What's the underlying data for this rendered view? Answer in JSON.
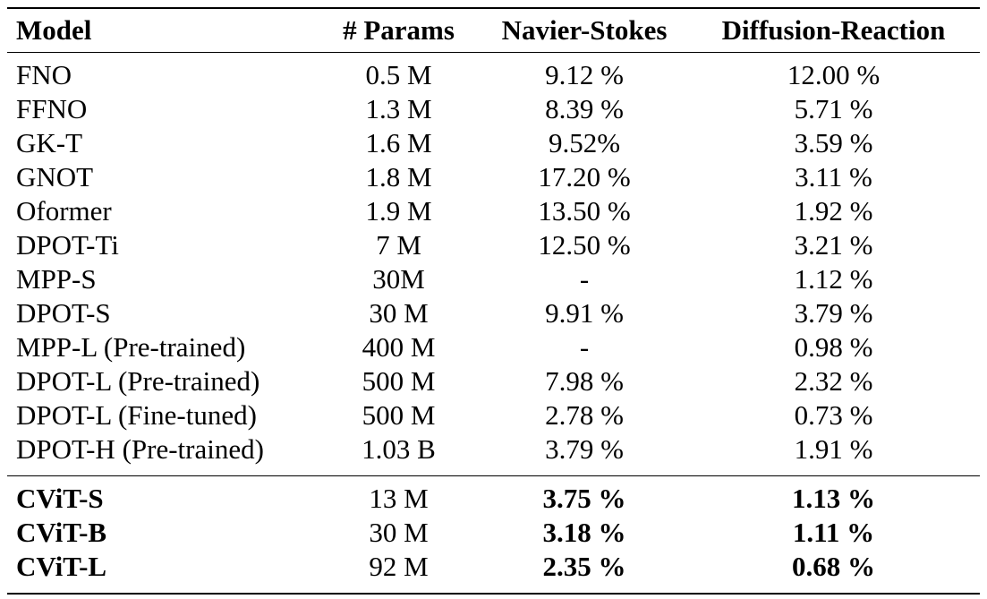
{
  "table": {
    "headers": [
      "Model",
      "# Params",
      "Navier-Stokes",
      "Diffusion-Reaction"
    ],
    "baseline_rows": [
      {
        "model": "FNO",
        "params": "0.5 M",
        "ns": "9.12 %",
        "dr": "12.00 %"
      },
      {
        "model": "FFNO",
        "params": "1.3 M",
        "ns": "8.39 %",
        "dr": "5.71 %"
      },
      {
        "model": "GK-T",
        "params": "1.6 M",
        "ns": "9.52%",
        "dr": "3.59 %"
      },
      {
        "model": "GNOT",
        "params": "1.8 M",
        "ns": "17.20 %",
        "dr": "3.11 %"
      },
      {
        "model": "Oformer",
        "params": "1.9 M",
        "ns": "13.50 %",
        "dr": "1.92 %"
      },
      {
        "model": "DPOT-Ti",
        "params": "7 M",
        "ns": "12.50 %",
        "dr": "3.21 %"
      },
      {
        "model": "MPP-S",
        "params": "30M",
        "ns": "-",
        "dr": "1.12 %"
      },
      {
        "model": "DPOT-S",
        "params": "30 M",
        "ns": "9.91 %",
        "dr": "3.79 %"
      },
      {
        "model": "MPP-L (Pre-trained)",
        "params": "400 M",
        "ns": "-",
        "dr": "0.98 %"
      },
      {
        "model": "DPOT-L (Pre-trained)",
        "params": "500 M",
        "ns": "7.98 %",
        "dr": "2.32 %"
      },
      {
        "model": "DPOT-L (Fine-tuned)",
        "params": "500 M",
        "ns": "2.78 %",
        "dr": "0.73 %"
      },
      {
        "model": "DPOT-H (Pre-trained)",
        "params": "1.03 B",
        "ns": "3.79 %",
        "dr": "1.91 %"
      }
    ],
    "cvit_rows": [
      {
        "model": "CViT-S",
        "params": "13 M",
        "ns": "3.75 %",
        "dr": "1.13 %"
      },
      {
        "model": "CViT-B",
        "params": "30 M",
        "ns": "3.18 %",
        "dr": "1.11 %"
      },
      {
        "model": "CViT-L",
        "params": "92 M",
        "ns": "2.35 %",
        "dr": "0.68 %"
      }
    ]
  }
}
